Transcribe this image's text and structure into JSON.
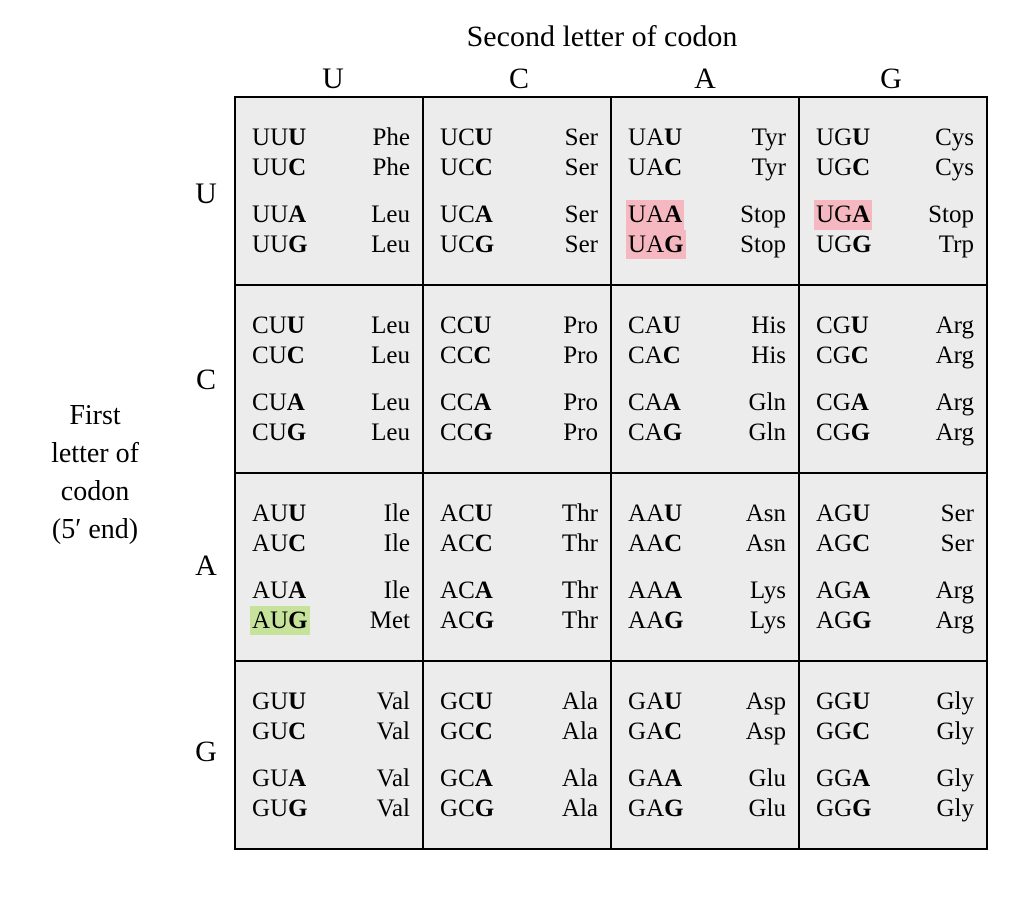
{
  "title_top": "Second letter of codon",
  "title_left_lines": [
    "First",
    "letter of",
    "codon",
    "(5′ end)"
  ],
  "col_headers": [
    "U",
    "C",
    "A",
    "G"
  ],
  "row_headers": [
    "U",
    "C",
    "A",
    "G"
  ],
  "colors": {
    "background": "#ffffff",
    "cell_bg": "#ececec",
    "border": "#000000",
    "text": "#000000",
    "highlight_stop": "#f6b8c0",
    "highlight_start": "#c6e29b"
  },
  "font": {
    "family": "Century Schoolbook",
    "title_size_pt": 22,
    "header_size_pt": 22,
    "cell_size_pt": 18
  },
  "third_bases": [
    "U",
    "C",
    "A",
    "G"
  ],
  "cells": [
    [
      {
        "codons": [
          {
            "b": "UUU",
            "aa": "Phe"
          },
          {
            "b": "UUC",
            "aa": "Phe"
          },
          {
            "b": "UUA",
            "aa": "Leu"
          },
          {
            "b": "UUG",
            "aa": "Leu"
          }
        ]
      },
      {
        "codons": [
          {
            "b": "UCU",
            "aa": "Ser"
          },
          {
            "b": "UCC",
            "aa": "Ser"
          },
          {
            "b": "UCA",
            "aa": "Ser"
          },
          {
            "b": "UCG",
            "aa": "Ser"
          }
        ]
      },
      {
        "codons": [
          {
            "b": "UAU",
            "aa": "Tyr"
          },
          {
            "b": "UAC",
            "aa": "Tyr"
          },
          {
            "b": "UAA",
            "aa": "Stop",
            "hl": "stop"
          },
          {
            "b": "UAG",
            "aa": "Stop",
            "hl": "stop"
          }
        ]
      },
      {
        "codons": [
          {
            "b": "UGU",
            "aa": "Cys"
          },
          {
            "b": "UGC",
            "aa": "Cys"
          },
          {
            "b": "UGA",
            "aa": "Stop",
            "hl": "stop"
          },
          {
            "b": "UGG",
            "aa": "Trp"
          }
        ]
      }
    ],
    [
      {
        "codons": [
          {
            "b": "CUU",
            "aa": "Leu"
          },
          {
            "b": "CUC",
            "aa": "Leu"
          },
          {
            "b": "CUA",
            "aa": "Leu"
          },
          {
            "b": "CUG",
            "aa": "Leu"
          }
        ]
      },
      {
        "codons": [
          {
            "b": "CCU",
            "aa": "Pro"
          },
          {
            "b": "CCC",
            "aa": "Pro"
          },
          {
            "b": "CCA",
            "aa": "Pro"
          },
          {
            "b": "CCG",
            "aa": "Pro"
          }
        ]
      },
      {
        "codons": [
          {
            "b": "CAU",
            "aa": "His"
          },
          {
            "b": "CAC",
            "aa": "His"
          },
          {
            "b": "CAA",
            "aa": "Gln"
          },
          {
            "b": "CAG",
            "aa": "Gln"
          }
        ]
      },
      {
        "codons": [
          {
            "b": "CGU",
            "aa": "Arg"
          },
          {
            "b": "CGC",
            "aa": "Arg"
          },
          {
            "b": "CGA",
            "aa": "Arg"
          },
          {
            "b": "CGG",
            "aa": "Arg"
          }
        ]
      }
    ],
    [
      {
        "codons": [
          {
            "b": "AUU",
            "aa": "Ile"
          },
          {
            "b": "AUC",
            "aa": "Ile"
          },
          {
            "b": "AUA",
            "aa": "Ile"
          },
          {
            "b": "AUG",
            "aa": "Met",
            "hl": "start"
          }
        ]
      },
      {
        "codons": [
          {
            "b": "ACU",
            "aa": "Thr"
          },
          {
            "b": "ACC",
            "aa": "Thr"
          },
          {
            "b": "ACA",
            "aa": "Thr"
          },
          {
            "b": "ACG",
            "aa": "Thr"
          }
        ]
      },
      {
        "codons": [
          {
            "b": "AAU",
            "aa": "Asn"
          },
          {
            "b": "AAC",
            "aa": "Asn"
          },
          {
            "b": "AAA",
            "aa": "Lys"
          },
          {
            "b": "AAG",
            "aa": "Lys"
          }
        ]
      },
      {
        "codons": [
          {
            "b": "AGU",
            "aa": "Ser"
          },
          {
            "b": "AGC",
            "aa": "Ser"
          },
          {
            "b": "AGA",
            "aa": "Arg"
          },
          {
            "b": "AGG",
            "aa": "Arg"
          }
        ]
      }
    ],
    [
      {
        "codons": [
          {
            "b": "GUU",
            "aa": "Val"
          },
          {
            "b": "GUC",
            "aa": "Val"
          },
          {
            "b": "GUA",
            "aa": "Val"
          },
          {
            "b": "GUG",
            "aa": "Val"
          }
        ]
      },
      {
        "codons": [
          {
            "b": "GCU",
            "aa": "Ala"
          },
          {
            "b": "GCC",
            "aa": "Ala"
          },
          {
            "b": "GCA",
            "aa": "Ala"
          },
          {
            "b": "GCG",
            "aa": "Ala"
          }
        ]
      },
      {
        "codons": [
          {
            "b": "GAU",
            "aa": "Asp"
          },
          {
            "b": "GAC",
            "aa": "Asp"
          },
          {
            "b": "GAA",
            "aa": "Glu"
          },
          {
            "b": "GAG",
            "aa": "Glu"
          }
        ]
      },
      {
        "codons": [
          {
            "b": "GGU",
            "aa": "Gly"
          },
          {
            "b": "GGC",
            "aa": "Gly"
          },
          {
            "b": "GGA",
            "aa": "Gly"
          },
          {
            "b": "GGG",
            "aa": "Gly"
          }
        ]
      }
    ]
  ]
}
